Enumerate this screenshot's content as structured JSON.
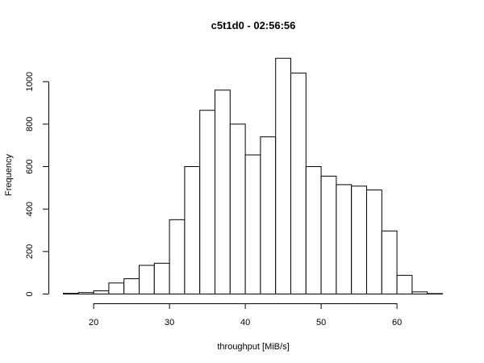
{
  "chart_data": {
    "type": "bar",
    "title": "c5t1d0 - 02:56:56",
    "xlabel": "throughput [MiB/s]",
    "ylabel": "Frequency",
    "bin_edges": [
      16,
      18,
      20,
      22,
      24,
      26,
      28,
      30,
      32,
      34,
      36,
      38,
      40,
      42,
      44,
      46,
      48,
      50,
      52,
      54,
      56,
      58,
      60,
      62,
      64,
      66
    ],
    "values": [
      3,
      7,
      15,
      52,
      72,
      135,
      145,
      350,
      600,
      865,
      960,
      800,
      655,
      740,
      1110,
      1040,
      600,
      555,
      515,
      508,
      490,
      297,
      88,
      10,
      2
    ],
    "x_ticks": [
      20,
      30,
      40,
      50,
      60
    ],
    "y_ticks": [
      0,
      200,
      400,
      600,
      800,
      1000
    ],
    "grid": false
  }
}
